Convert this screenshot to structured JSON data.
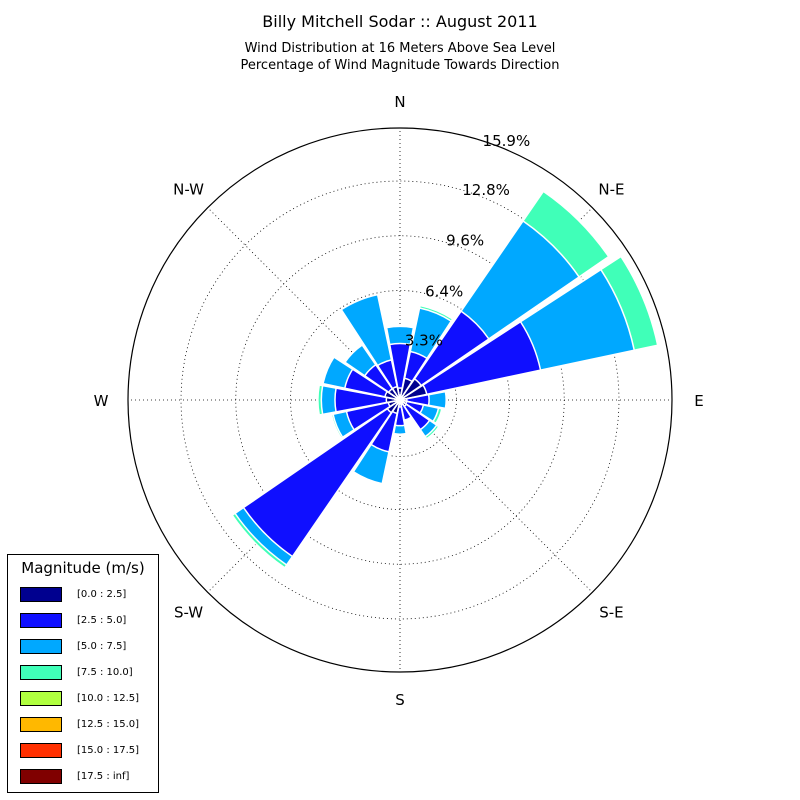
{
  "title": "Billy Mitchell Sodar :: August 2011",
  "subtitle_1": "Wind Distribution at 16 Meters Above Sea Level",
  "subtitle_2": "Percentage of Wind Magnitude Towards Direction",
  "chart_data": {
    "type": "windrose",
    "direction_labels": [
      "N",
      "N-E",
      "E",
      "S-E",
      "S",
      "S-W",
      "W",
      "N-W"
    ],
    "radial_ticks": [
      "3.3%",
      "6.4%",
      "9.6%",
      "12.8%",
      "15.9%"
    ],
    "radial_tick_values": [
      3.3,
      6.4,
      9.6,
      12.8,
      15.9
    ],
    "rmax": 15.9,
    "legend_title": "Magnitude (m/s)",
    "legend_placement": "lower-left",
    "bins": [
      {
        "label": "[0.0 : 2.5]",
        "color": "#00008f"
      },
      {
        "label": "[2.5 : 5.0]",
        "color": "#0f0fff"
      },
      {
        "label": "[5.0 : 7.5]",
        "color": "#00a8ff"
      },
      {
        "label": "[7.5 : 10.0]",
        "color": "#40ffb8"
      },
      {
        "label": "[10.0 : 12.5]",
        "color": "#b0ff40"
      },
      {
        "label": "[12.5 : 15.0]",
        "color": "#ffb800"
      },
      {
        "label": "[15.0 : 17.5]",
        "color": "#ff3000"
      },
      {
        "label": "[17.5 : inf]",
        "color": "#800000"
      }
    ],
    "sectors_deg": [
      0,
      22.5,
      45,
      67.5,
      90,
      112.5,
      135,
      157.5,
      180,
      202.5,
      225,
      247.5,
      270,
      292.5,
      315,
      337.5
    ],
    "cumulative_values": [
      [
        0.7,
        3.3,
        4.3,
        4.3,
        4.3,
        4.3,
        4.3,
        4.3
      ],
      [
        1.3,
        2.9,
        5.5,
        5.65,
        5.65,
        5.65,
        5.65,
        5.65
      ],
      [
        1.5,
        6.3,
        12.7,
        14.8,
        14.8,
        14.8,
        14.8,
        14.8
      ],
      [
        1.6,
        8.4,
        14.0,
        15.4,
        15.4,
        15.4,
        15.4,
        15.4
      ],
      [
        0.4,
        1.7,
        2.7,
        2.75,
        2.75,
        2.75,
        2.75,
        2.75
      ],
      [
        0.4,
        1.4,
        2.3,
        2.5,
        2.5,
        2.5,
        2.5,
        2.5
      ],
      [
        0.45,
        2.1,
        2.6,
        2.75,
        2.75,
        2.75,
        2.75,
        2.75
      ],
      [
        0.3,
        1.2,
        1.2,
        1.2,
        1.2,
        1.2,
        1.2,
        1.2
      ],
      [
        0.4,
        1.5,
        2.0,
        2.0,
        2.0,
        2.0,
        2.0,
        2.0
      ],
      [
        0.8,
        3.1,
        5.0,
        5.0,
        5.0,
        5.0,
        5.0,
        5.0
      ],
      [
        0.9,
        11.1,
        11.7,
        11.9,
        11.9,
        11.9,
        11.9,
        11.9
      ],
      [
        0.7,
        3.2,
        4.0,
        4.1,
        4.1,
        4.1,
        4.1,
        4.1
      ],
      [
        0.8,
        3.8,
        4.6,
        4.8,
        4.8,
        4.8,
        4.8,
        4.8
      ],
      [
        0.9,
        3.3,
        4.6,
        4.6,
        4.6,
        4.6,
        4.6,
        4.6
      ],
      [
        0.8,
        2.5,
        3.9,
        3.9,
        3.9,
        3.9,
        3.9,
        3.9
      ],
      [
        0.8,
        2.4,
        6.3,
        6.3,
        6.3,
        6.3,
        6.3,
        6.3
      ]
    ]
  }
}
